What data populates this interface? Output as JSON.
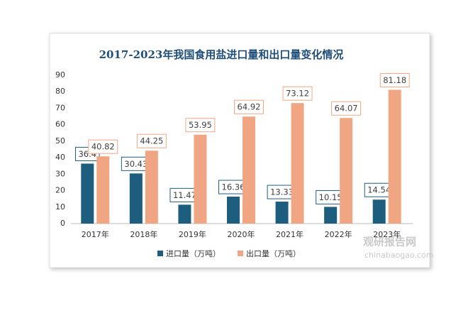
{
  "chart_data": {
    "type": "bar",
    "title": "2017-2023年我国食用盐进口量和出口量变化情况",
    "categories": [
      "2017年",
      "2018年",
      "2019年",
      "2020年",
      "2021年",
      "2022年",
      "2023年"
    ],
    "series": [
      {
        "name": "进口量（万吨）",
        "color": "#1d5e7e",
        "values": [
          36.4,
          30.43,
          11.47,
          16.36,
          13.33,
          10.15,
          14.54
        ]
      },
      {
        "name": "出口量（万吨）",
        "color": "#f1a683",
        "values": [
          40.82,
          44.25,
          53.95,
          64.92,
          73.12,
          64.07,
          81.18
        ]
      }
    ],
    "ylim": [
      0,
      90
    ],
    "yticks": [
      0,
      10,
      20,
      30,
      40,
      50,
      60,
      70,
      80,
      90
    ],
    "legend": "bottom",
    "watermark": {
      "name": "观研报告网",
      "url": "chinabaogao.com"
    }
  }
}
